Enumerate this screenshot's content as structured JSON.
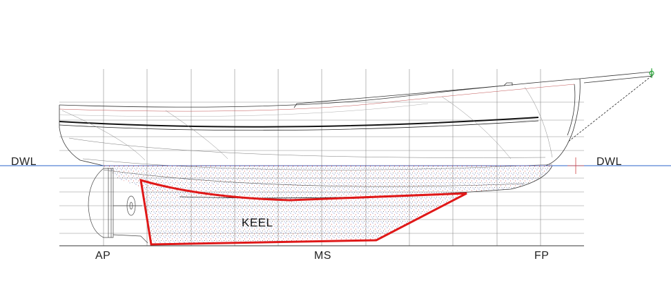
{
  "labels": {
    "dwl_left": "DWL",
    "dwl_right": "DWL",
    "ap": "AP",
    "ms": "MS",
    "fp": "FP",
    "keel": "KEEL"
  },
  "colors": {
    "waterline": "#2a63c9",
    "keel_outline": "#e01818",
    "hull_lines": "#333333",
    "grid": "#8a8a8a",
    "stipple_blue": "#3b4fae",
    "stipple_red": "#c43030"
  }
}
